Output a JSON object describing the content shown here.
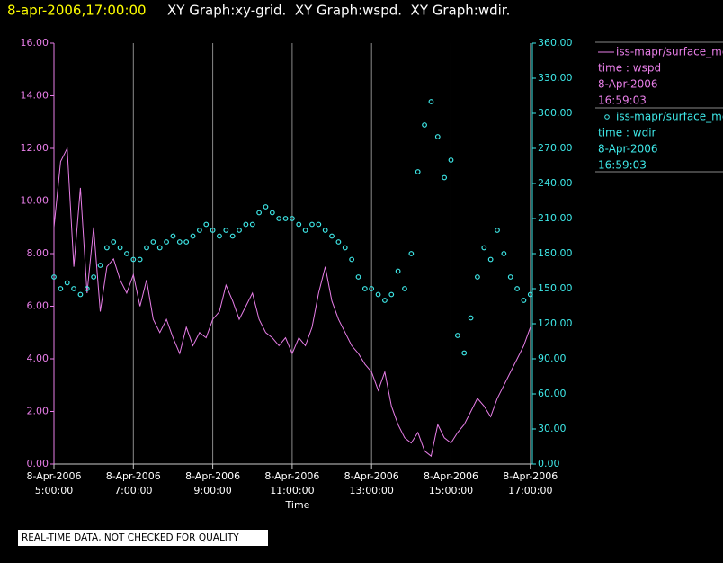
{
  "chart_data": {
    "type": "line",
    "title": "8-apr-2006,17:00:00",
    "subtitle": "XY Graph:xy-grid.  XY Graph:wspd.  XY Graph:wdir.",
    "xlabel": "Time",
    "footer": "REAL-TIME DATA, NOT CHECKED FOR QUALITY",
    "grid": true,
    "legend": "right",
    "x": [
      "2006-04-08T05:00",
      "2006-04-08T05:10",
      "2006-04-08T05:20",
      "2006-04-08T05:30",
      "2006-04-08T05:40",
      "2006-04-08T05:50",
      "2006-04-08T06:00",
      "2006-04-08T06:10",
      "2006-04-08T06:20",
      "2006-04-08T06:30",
      "2006-04-08T06:40",
      "2006-04-08T06:50",
      "2006-04-08T07:00",
      "2006-04-08T07:10",
      "2006-04-08T07:20",
      "2006-04-08T07:30",
      "2006-04-08T07:40",
      "2006-04-08T07:50",
      "2006-04-08T08:00",
      "2006-04-08T08:10",
      "2006-04-08T08:20",
      "2006-04-08T08:30",
      "2006-04-08T08:40",
      "2006-04-08T08:50",
      "2006-04-08T09:00",
      "2006-04-08T09:10",
      "2006-04-08T09:20",
      "2006-04-08T09:30",
      "2006-04-08T09:40",
      "2006-04-08T09:50",
      "2006-04-08T10:00",
      "2006-04-08T10:10",
      "2006-04-08T10:20",
      "2006-04-08T10:30",
      "2006-04-08T10:40",
      "2006-04-08T10:50",
      "2006-04-08T11:00",
      "2006-04-08T11:10",
      "2006-04-08T11:20",
      "2006-04-08T11:30",
      "2006-04-08T11:40",
      "2006-04-08T11:50",
      "2006-04-08T12:00",
      "2006-04-08T12:10",
      "2006-04-08T12:20",
      "2006-04-08T12:30",
      "2006-04-08T12:40",
      "2006-04-08T12:50",
      "2006-04-08T13:00",
      "2006-04-08T13:10",
      "2006-04-08T13:20",
      "2006-04-08T13:30",
      "2006-04-08T13:40",
      "2006-04-08T13:50",
      "2006-04-08T14:00",
      "2006-04-08T14:10",
      "2006-04-08T14:20",
      "2006-04-08T14:30",
      "2006-04-08T14:40",
      "2006-04-08T14:50",
      "2006-04-08T15:00",
      "2006-04-08T15:10",
      "2006-04-08T15:20",
      "2006-04-08T15:30",
      "2006-04-08T15:40",
      "2006-04-08T15:50",
      "2006-04-08T16:00",
      "2006-04-08T16:10",
      "2006-04-08T16:20",
      "2006-04-08T16:30",
      "2006-04-08T16:40",
      "2006-04-08T16:50",
      "2006-04-08T17:00"
    ],
    "xlim": [
      "2006-04-08T05:00",
      "2006-04-08T17:03"
    ],
    "xticks": [
      {
        "value": "2006-04-08T05:00",
        "label": "8-Apr-2006\n5:00:00"
      },
      {
        "value": "2006-04-08T07:00",
        "label": "8-Apr-2006\n7:00:00"
      },
      {
        "value": "2006-04-08T09:00",
        "label": "8-Apr-2006\n9:00:00"
      },
      {
        "value": "2006-04-08T11:00",
        "label": "8-Apr-2006\n11:00:00"
      },
      {
        "value": "2006-04-08T13:00",
        "label": "8-Apr-2006\n13:00:00"
      },
      {
        "value": "2006-04-08T15:00",
        "label": "8-Apr-2006\n15:00:00"
      },
      {
        "value": "2006-04-08T17:00",
        "label": "8-Apr-2006\n17:00:00"
      }
    ],
    "ylim": [
      0,
      16
    ],
    "yticks": [
      {
        "value": 0,
        "label": "0.00"
      },
      {
        "value": 2,
        "label": "2.00"
      },
      {
        "value": 4,
        "label": "4.00"
      },
      {
        "value": 6,
        "label": "6.00"
      },
      {
        "value": 8,
        "label": "8.00"
      },
      {
        "value": 10,
        "label": "10.00"
      },
      {
        "value": 12,
        "label": "12.00"
      },
      {
        "value": 14,
        "label": "14.00"
      },
      {
        "value": 16,
        "label": "16.00"
      }
    ],
    "y2lim": [
      0,
      360
    ],
    "y2ticks": [
      {
        "value": 0,
        "label": "0.00"
      },
      {
        "value": 30,
        "label": "30.00"
      },
      {
        "value": 60,
        "label": "60.00"
      },
      {
        "value": 90,
        "label": "90.00"
      },
      {
        "value": 120,
        "label": "120.00"
      },
      {
        "value": 150,
        "label": "150.00"
      },
      {
        "value": 180,
        "label": "180.00"
      },
      {
        "value": 210,
        "label": "210.00"
      },
      {
        "value": 240,
        "label": "240.00"
      },
      {
        "value": 270,
        "label": "270.00"
      },
      {
        "value": 300,
        "label": "300.00"
      },
      {
        "value": 330,
        "label": "330.00"
      },
      {
        "value": 360,
        "label": "360.00"
      }
    ],
    "series": [
      {
        "name": "iss-mapr/surface_met",
        "legend_lines": [
          "time : wspd",
          "8-Apr-2006",
          "16:59:03"
        ],
        "color": "#e87ee8",
        "style": "line",
        "values": [
          9.0,
          11.5,
          12.0,
          7.5,
          10.5,
          6.5,
          9.0,
          5.8,
          7.5,
          7.8,
          7.0,
          6.5,
          7.2,
          6.0,
          7.0,
          5.5,
          5.0,
          5.5,
          4.8,
          4.2,
          5.2,
          4.5,
          5.0,
          4.8,
          5.5,
          5.8,
          6.8,
          6.2,
          5.5,
          6.0,
          6.5,
          5.5,
          5.0,
          4.8,
          4.5,
          4.8,
          4.2,
          4.8,
          4.5,
          5.2,
          6.5,
          7.5,
          6.2,
          5.5,
          5.0,
          4.5,
          4.2,
          3.8,
          3.5,
          2.8,
          3.5,
          2.2,
          1.5,
          1.0,
          0.8,
          1.2,
          0.5,
          0.3,
          1.5,
          1.0,
          0.8,
          1.2,
          1.5,
          2.0,
          2.5,
          2.2,
          1.8,
          2.5,
          3.0,
          3.5,
          4.0,
          4.5,
          5.2
        ]
      },
      {
        "name": "iss-mapr/surface_met",
        "legend_lines": [
          "time : wdir",
          "8-Apr-2006",
          "16:59:03"
        ],
        "color": "#3ee8e8",
        "style": "markers",
        "axis": "y2",
        "values": [
          160,
          150,
          155,
          150,
          145,
          150,
          160,
          170,
          185,
          190,
          185,
          180,
          175,
          175,
          185,
          190,
          185,
          190,
          195,
          190,
          190,
          195,
          200,
          205,
          200,
          195,
          200,
          195,
          200,
          205,
          205,
          215,
          220,
          215,
          210,
          210,
          210,
          205,
          200,
          205,
          205,
          200,
          195,
          190,
          185,
          175,
          160,
          150,
          150,
          145,
          140,
          145,
          165,
          150,
          180,
          250,
          290,
          310,
          280,
          245,
          260,
          110,
          95,
          125,
          160,
          185,
          175,
          200,
          180,
          160,
          150,
          140,
          145
        ]
      }
    ]
  }
}
